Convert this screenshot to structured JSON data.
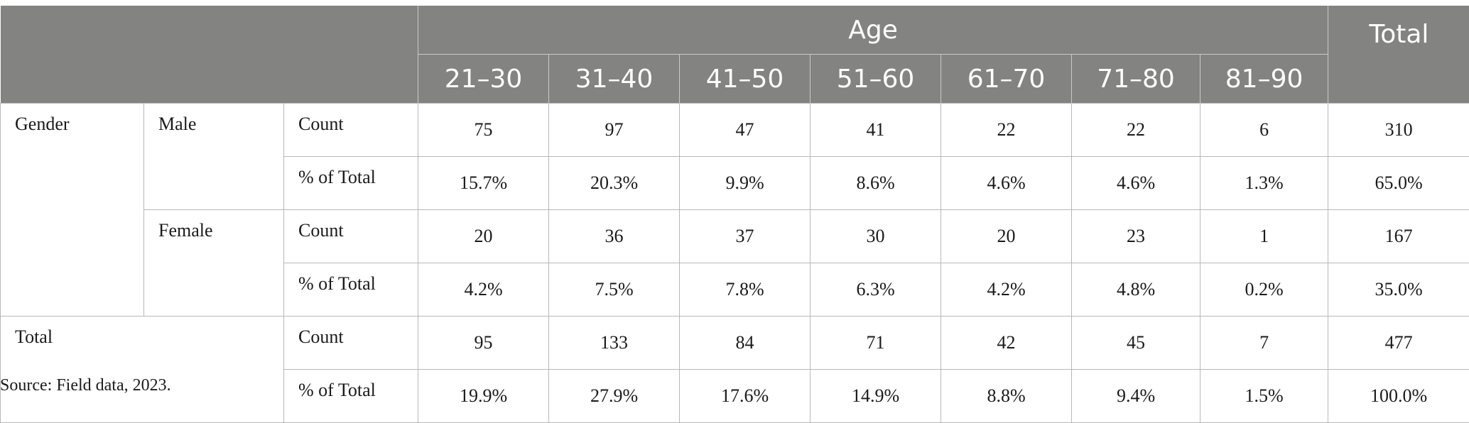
{
  "header": {
    "age_label": "Age",
    "total_label": "Total",
    "age_ranges": [
      "21–30",
      "31–40",
      "41–50",
      "51–60",
      "61–70",
      "71–80",
      "81–90"
    ]
  },
  "rows": {
    "gender_label": "Gender",
    "total_label": "Total",
    "groups": [
      {
        "label": "Male",
        "count_label": "Count",
        "pct_label": "% of Total",
        "counts": [
          "75",
          "97",
          "47",
          "41",
          "22",
          "22",
          "6",
          "310"
        ],
        "pcts": [
          "15.7%",
          "20.3%",
          "9.9%",
          "8.6%",
          "4.6%",
          "4.6%",
          "1.3%",
          "65.0%"
        ]
      },
      {
        "label": "Female",
        "count_label": "Count",
        "pct_label": "% of Total",
        "counts": [
          "20",
          "36",
          "37",
          "30",
          "20",
          "23",
          "1",
          "167"
        ],
        "pcts": [
          "4.2%",
          "7.5%",
          "7.8%",
          "6.3%",
          "4.2%",
          "4.8%",
          "0.2%",
          "35.0%"
        ]
      }
    ],
    "total": {
      "count_label": "Count",
      "pct_label": "% of Total",
      "counts": [
        "95",
        "133",
        "84",
        "71",
        "42",
        "45",
        "7",
        "477"
      ],
      "pcts": [
        "19.9%",
        "27.9%",
        "17.6%",
        "14.9%",
        "8.8%",
        "9.4%",
        "1.5%",
        "100.0%"
      ]
    }
  },
  "source": "Source: Field data, 2023."
}
